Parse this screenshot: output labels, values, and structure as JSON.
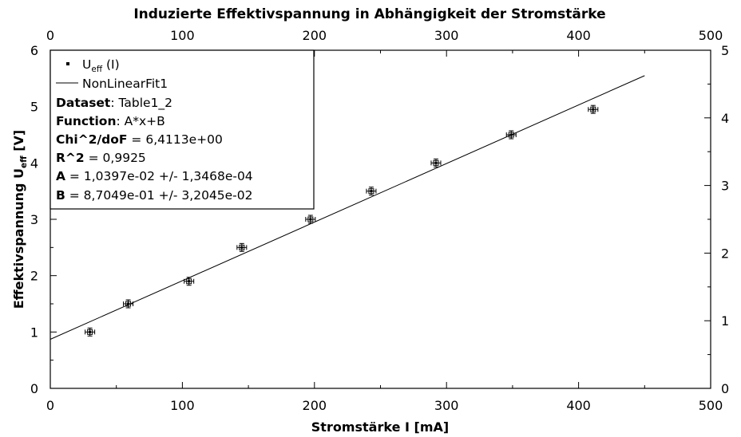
{
  "chart_data": {
    "type": "scatter",
    "title": "Induzierte Effektivspannung in Abhängigkeit der Stromstärke",
    "xlabel": "Stromstärke I [mA]",
    "ylabel": {
      "main": "Effektivspannung U",
      "sub": "eff",
      "unit": " [V]"
    },
    "xlim": [
      0,
      500
    ],
    "ylim": [
      0,
      6
    ],
    "y2lim": [
      0,
      5
    ],
    "x_ticks": [
      "0",
      "100",
      "200",
      "300",
      "400",
      "500"
    ],
    "y_ticks": [
      "0",
      "1",
      "2",
      "3",
      "4",
      "5",
      "6"
    ],
    "y2_ticks": [
      "0",
      "1",
      "2",
      "3",
      "4",
      "5"
    ],
    "grid": false,
    "legend_position": "top-left",
    "series": [
      {
        "name": {
          "main": "U",
          "sub": "eff",
          "suffix": " (I)"
        },
        "type": "scatter",
        "x": [
          30,
          59,
          105,
          145,
          197,
          243,
          292,
          349,
          411
        ],
        "y": [
          1.0,
          1.5,
          1.9,
          2.5,
          3.0,
          3.5,
          4.0,
          4.5,
          4.95
        ]
      },
      {
        "name": "NonLinearFit1",
        "type": "line",
        "x": [
          0,
          450
        ],
        "y": [
          0.87049,
          5.54914
        ]
      }
    ],
    "fit_info": [
      {
        "key": "Dataset",
        "value": ": Table1_2"
      },
      {
        "key": "Function",
        "value": ": A*x+B"
      },
      {
        "key": "Chi^2/doF",
        "value": " = 6,4113e+00"
      },
      {
        "key": "R^2",
        "value": " = 0,9925"
      },
      {
        "key": "A",
        "value": " = 1,0397e-02 +/- 1,3468e-04"
      },
      {
        "key": "B",
        "value": " = 8,7049e-01 +/- 3,2045e-02"
      }
    ]
  }
}
